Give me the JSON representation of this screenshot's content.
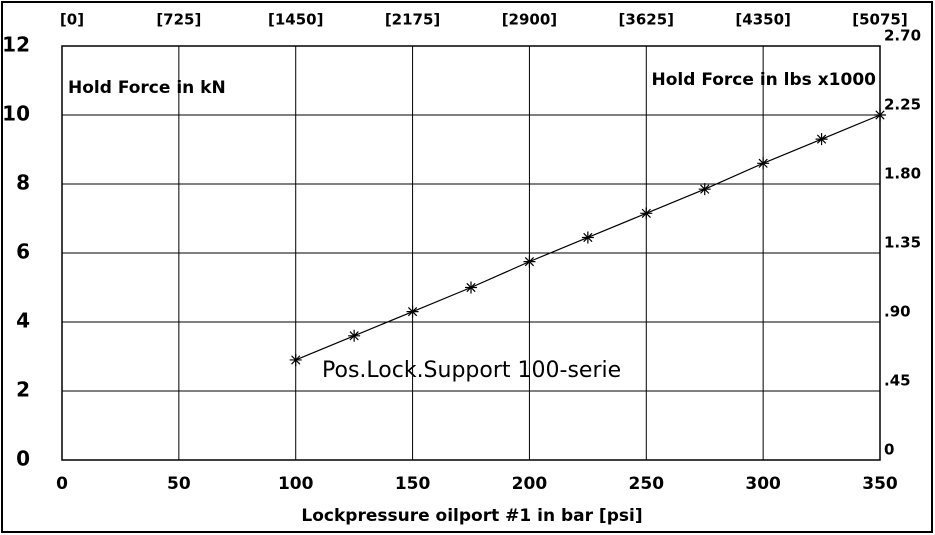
{
  "chart_data": {
    "type": "line",
    "x_label": "Lockpressure oilport #1 in bar [psi]",
    "y_label": "Hold Force in kN",
    "y2_label": "Hold Force in lbs x1000",
    "annotation": "Pos.Lock.Support 100-serie",
    "x": [
      100,
      125,
      150,
      175,
      200,
      225,
      250,
      275,
      300,
      325,
      350
    ],
    "series": [
      {
        "color": "#000000",
        "values": [
          2.9,
          3.6,
          4.3,
          5.0,
          5.75,
          6.45,
          7.15,
          7.85,
          8.6,
          9.3,
          10.0
        ]
      }
    ],
    "xlim": [
      0,
      350
    ],
    "xticks": [
      0,
      50,
      100,
      150,
      200,
      250,
      300,
      350
    ],
    "x2lim": [
      0,
      5075
    ],
    "x2ticks": [
      {
        "value": 0,
        "label": "[0]"
      },
      {
        "value": 725,
        "label": "[725]"
      },
      {
        "value": 1450,
        "label": "[1450]"
      },
      {
        "value": 2175,
        "label": "[2175]"
      },
      {
        "value": 2900,
        "label": "[2900]"
      },
      {
        "value": 3625,
        "label": "[3625]"
      },
      {
        "value": 4350,
        "label": "[4350]"
      },
      {
        "value": 5075,
        "label": "[5075]"
      }
    ],
    "ylim": [
      0,
      12
    ],
    "yticks": [
      0,
      2,
      4,
      6,
      8,
      10,
      12
    ],
    "y2lim": [
      0,
      2.7
    ],
    "y2ticks": [
      0,
      {
        "value": 0.45,
        "label": ".45"
      },
      {
        "value": 0.9,
        "label": ".90"
      },
      1.35,
      {
        "value": 1.8,
        "label": "1.80"
      },
      2.25,
      {
        "value": 2.7,
        "label": "2.70"
      }
    ],
    "grid": true
  }
}
